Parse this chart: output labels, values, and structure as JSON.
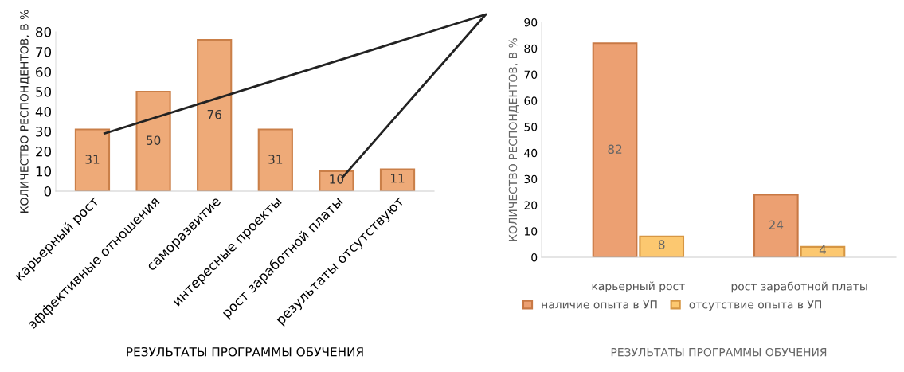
{
  "chart_data": [
    {
      "type": "bar",
      "categories": [
        "карьерный рост",
        "эффективные отношения",
        "саморазвитие",
        "интересные проекты",
        "рост заработной платы",
        "результаты отсутствуют"
      ],
      "series": [
        {
          "color": "#eeaa78",
          "values": [
            31,
            50,
            76,
            31,
            10,
            11
          ]
        }
      ],
      "ylim": [
        0,
        80
      ],
      "yticks": [
        0,
        10,
        20,
        30,
        40,
        50,
        60,
        70,
        80
      ],
      "ylabel": "КОЛИЧЕСТВО РЕСПОНДЕНТОВ, В %",
      "xlabel": "РЕЗУЛЬТАТЫ ПРОГРАММЫ ОБУЧЕНИЯ",
      "data_labels": true,
      "grid": false,
      "legend": false
    },
    {
      "type": "bar",
      "categories": [
        "карьерный рост",
        "рост заработной платы"
      ],
      "series": [
        {
          "name": "наличие опыта в УП",
          "color": "#eca072",
          "values": [
            82,
            24
          ]
        },
        {
          "name": "отсутствие опыта в УП",
          "color": "#fcc870",
          "values": [
            8,
            4
          ]
        }
      ],
      "ylim": [
        0,
        90
      ],
      "yticks": [
        0,
        10,
        20,
        30,
        40,
        50,
        60,
        70,
        80,
        90
      ],
      "ylabel": "КОЛИЧЕСТВО РЕСПОНДЕНТОВ, В %",
      "xlabel": "РЕЗУЛЬТАТЫ ПРОГРАММЫ ОБУЧЕНИЯ",
      "data_labels": true,
      "grid": false,
      "legend": "bottom"
    }
  ]
}
